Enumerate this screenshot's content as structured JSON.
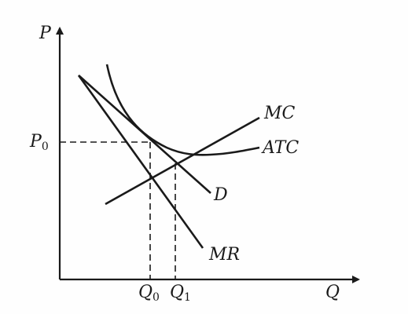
{
  "diagram": {
    "axis_labels": {
      "y": "P",
      "x": "Q"
    },
    "curve_labels": {
      "mc": "MC",
      "atc": "ATC",
      "demand": "D",
      "mr": "MR"
    },
    "price_label": {
      "letter": "P",
      "subscript": "0"
    },
    "quantity_labels": [
      {
        "letter": "Q",
        "subscript": "0"
      },
      {
        "letter": "Q",
        "subscript": "1"
      }
    ],
    "colors": {
      "ink": "#1a1a1a",
      "background": "#fefefe"
    }
  }
}
